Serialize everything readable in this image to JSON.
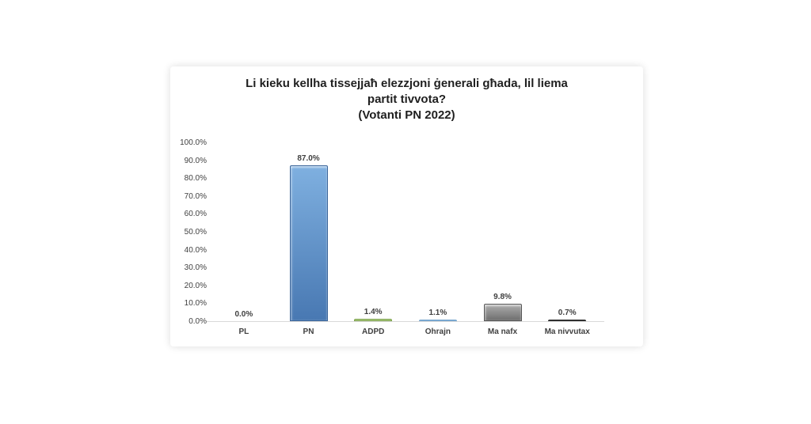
{
  "page": {
    "background": "#ffffff"
  },
  "chart_data": {
    "type": "bar",
    "title": "Li kieku kellha tissejjaħ elezzjoni ġenerali għada, lil liema partit tivvota?",
    "subtitle": "(Votanti PN 2022)",
    "categories": [
      "PL",
      "PN",
      "ADPD",
      "Ohrajn",
      "Ma nafx",
      "Ma nivvutax"
    ],
    "values": [
      0.0,
      87.0,
      1.4,
      1.1,
      9.8,
      0.7
    ],
    "value_labels": [
      "0.0%",
      "87.0%",
      "1.4%",
      "1.1%",
      "9.8%",
      "0.7%"
    ],
    "xlabel": "",
    "ylabel": "",
    "ylim": [
      0,
      100
    ],
    "ytick_step": 10,
    "ytick_labels": [
      "0.0%",
      "10.0%",
      "20.0%",
      "30.0%",
      "40.0%",
      "50.0%",
      "60.0%",
      "70.0%",
      "80.0%",
      "90.0%",
      "100.0%"
    ],
    "grid": false,
    "legend": "none",
    "text_color": "#3f3f3f",
    "title_color": "#1f1f1f",
    "axis_line_color": "#d9d9d9",
    "bar_styles": [
      {
        "category": "PL",
        "fill_top": "#e9e9e9",
        "fill_bottom": "#d2d2d2",
        "border": "#c0c0c0"
      },
      {
        "category": "PN",
        "fill_top": "#7fb0e0",
        "fill_bottom": "#4878b2",
        "border": "#3b659a"
      },
      {
        "category": "ADPD",
        "fill_top": "#c8dfa6",
        "fill_bottom": "#9dc26f",
        "border": "#7da24c"
      },
      {
        "category": "Ohrajn",
        "fill_top": "#aed0ea",
        "fill_bottom": "#8cb8dd",
        "border": "#79a7cf"
      },
      {
        "category": "Ma nafx",
        "fill_top": "#adadad",
        "fill_bottom": "#6e6e6e",
        "border": "#585858"
      },
      {
        "category": "Ma nivvutax",
        "fill_top": "#4c4c4c",
        "fill_bottom": "#383838",
        "border": "#2f2f2f"
      }
    ]
  }
}
